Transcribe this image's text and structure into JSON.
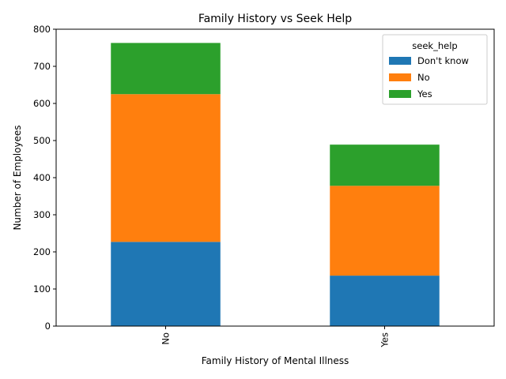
{
  "chart_data": {
    "type": "bar",
    "stacked": true,
    "title": "Family History vs Seek Help",
    "xlabel": "Family History of Mental Illness",
    "ylabel": "Number of Employees",
    "categories": [
      "No",
      "Yes"
    ],
    "ylim": [
      0,
      800
    ],
    "yticks": [
      0,
      100,
      200,
      300,
      400,
      500,
      600,
      700,
      800
    ],
    "legend": {
      "title": "seek_help",
      "placement": "top-right"
    },
    "series": [
      {
        "name": "Don't know",
        "color": "#1f77b4",
        "values": [
          227,
          136
        ]
      },
      {
        "name": "No",
        "color": "#ff7f0e",
        "values": [
          398,
          242
        ]
      },
      {
        "name": "Yes",
        "color": "#2ca02c",
        "values": [
          138,
          111
        ]
      }
    ],
    "grid": false
  }
}
